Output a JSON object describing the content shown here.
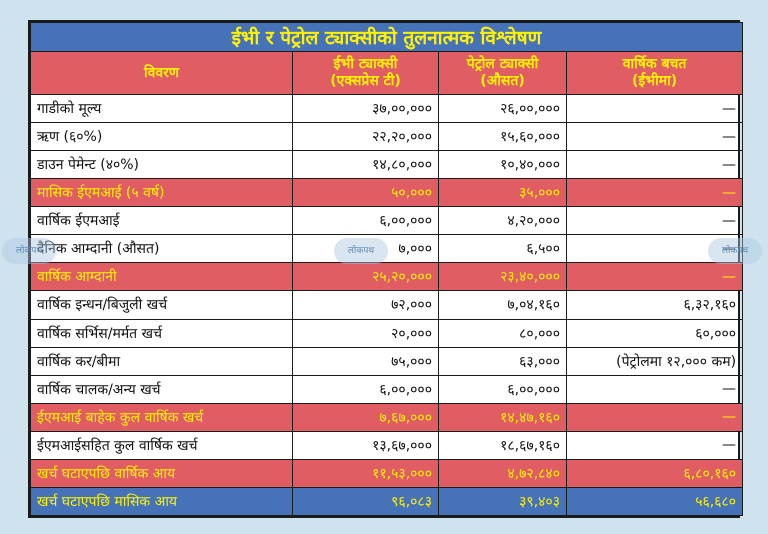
{
  "title": "ईभी र पेट्रोल ट्याक्सीको तुलनात्मक विश्लेषण",
  "headers": {
    "col1": "विवरण",
    "col2": "ईभी ट्याक्सी\n(एक्सप्रेस टी)",
    "col3": "पेट्रोल ट्याक्सी\n(औसत)",
    "col4": "वार्षिक बचत\n(ईभीमा)"
  },
  "rows": [
    {
      "label": "गाडीको मूल्य",
      "ev": "३७,००,०००",
      "petrol": "२६,००,०००",
      "saving": "—",
      "style": "white"
    },
    {
      "label": "ऋण (६०%)",
      "ev": "२२,२०,०००",
      "petrol": "१५,६०,०००",
      "saving": "—",
      "style": "white"
    },
    {
      "label": "डाउन पेमेन्ट (४०%)",
      "ev": "१४,८०,०००",
      "petrol": "१०,४०,०००",
      "saving": "—",
      "style": "white"
    },
    {
      "label": "मासिक ईएमआई (५ वर्ष)",
      "ev": "५०,०००",
      "petrol": "३५,०००",
      "saving": "—",
      "style": "red"
    },
    {
      "label": "वार्षिक ईएमआई",
      "ev": "६,००,०००",
      "petrol": "४,२०,०००",
      "saving": "—",
      "style": "white"
    },
    {
      "label": "दैनिक आम्दानी (औसत)",
      "ev": "७,०००",
      "petrol": "६,५००",
      "saving": "—",
      "style": "white"
    },
    {
      "label": "वार्षिक आम्दानी",
      "ev": "२५,२०,०००",
      "petrol": "२३,४०,०००",
      "saving": "—",
      "style": "red"
    },
    {
      "label": "वार्षिक इन्धन/बिजुली खर्च",
      "ev": "७२,०००",
      "petrol": "७,०४,१६०",
      "saving": "६,३२,१६०",
      "style": "white"
    },
    {
      "label": "वार्षिक सर्भिस/मर्मत खर्च",
      "ev": "२०,०००",
      "petrol": "८०,०००",
      "saving": "६०,०००",
      "style": "white"
    },
    {
      "label": "वार्षिक कर/बीमा",
      "ev": "७५,०००",
      "petrol": "६३,०००",
      "saving": "(पेट्रोलमा १२,००० कम)",
      "style": "white"
    },
    {
      "label": "वार्षिक चालक/अन्य खर्च",
      "ev": "६,००,०००",
      "petrol": "६,००,०००",
      "saving": "—",
      "style": "white"
    },
    {
      "label": "ईएमआई बाहेक कुल वार्षिक खर्च",
      "ev": "७,६७,०००",
      "petrol": "१४,४७,१६०",
      "saving": "—",
      "style": "red"
    },
    {
      "label": "ईएमआईसहित कुल वार्षिक खर्च",
      "ev": "१३,६७,०००",
      "petrol": "१८,६७,१६०",
      "saving": "—",
      "style": "white"
    },
    {
      "label": "खर्च घटाएपछि वार्षिक आय",
      "ev": "११,५३,०००",
      "petrol": "४,७२,८४०",
      "saving": "६,८०,१६०",
      "style": "red"
    },
    {
      "label": "खर्च घटाएपछि मासिक आय",
      "ev": "९६,०८३",
      "petrol": "३९,४०३",
      "saving": "५६,६८०",
      "style": "blue"
    }
  ],
  "watermark": "लोकपथ"
}
